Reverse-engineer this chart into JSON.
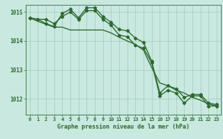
{
  "xlabel": "Graphe pression niveau de la mer (hPa)",
  "hours": [
    0,
    1,
    2,
    3,
    4,
    5,
    6,
    7,
    8,
    9,
    10,
    11,
    12,
    13,
    14,
    15,
    16,
    17,
    18,
    19,
    20,
    21,
    22,
    23
  ],
  "line1": [
    1014.8,
    1014.75,
    1014.75,
    1014.6,
    1014.85,
    1015.0,
    1014.75,
    1015.05,
    1015.05,
    1014.75,
    1014.55,
    1014.2,
    1014.15,
    1013.85,
    1013.75,
    1013.25,
    1012.1,
    1012.3,
    1012.2,
    1011.85,
    1012.1,
    1012.1,
    1011.75,
    1011.75
  ],
  "line2": [
    1014.8,
    1014.75,
    1014.6,
    1014.5,
    1014.95,
    1015.1,
    1014.8,
    1015.15,
    1015.15,
    1014.85,
    1014.65,
    1014.4,
    1014.35,
    1014.1,
    1013.95,
    1013.3,
    1012.2,
    1012.45,
    1012.35,
    1012.05,
    1012.15,
    1012.15,
    1011.85,
    1011.8
  ],
  "line3": [
    1014.8,
    1014.68,
    1014.58,
    1014.48,
    1014.48,
    1014.38,
    1014.38,
    1014.38,
    1014.38,
    1014.38,
    1014.28,
    1014.13,
    1014.0,
    1013.88,
    1013.68,
    1013.08,
    1012.55,
    1012.45,
    1012.3,
    1012.2,
    1012.05,
    1011.95,
    1011.82,
    1011.75
  ],
  "line_color": "#2d6a2d",
  "bg_color": "#c8e8e0",
  "grid_color": "#a0c8be",
  "tick_label_color": "#2d6a2d",
  "ylim_min": 1011.45,
  "ylim_max": 1015.25,
  "yticks": [
    1012,
    1013,
    1014,
    1015
  ],
  "marker": "D",
  "marker_size": 2.2,
  "linewidth": 1.0
}
